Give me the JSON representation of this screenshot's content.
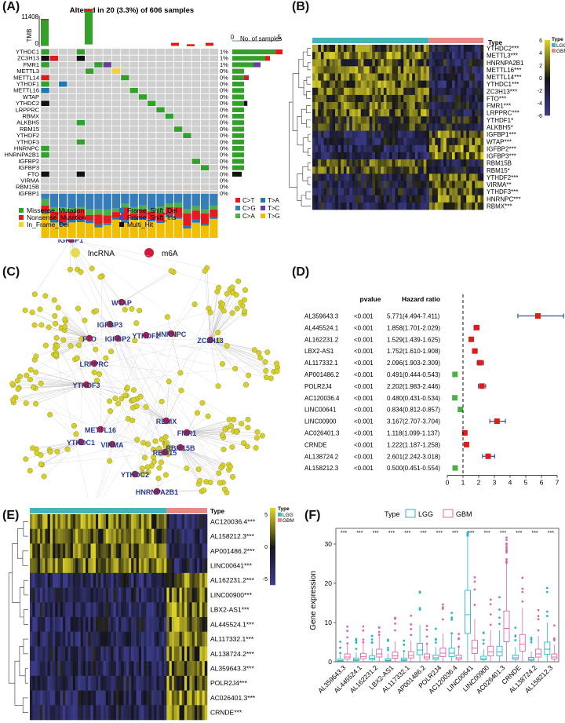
{
  "panels": {
    "A": {
      "label": "(A)"
    },
    "B": {
      "label": "(B)"
    },
    "C": {
      "label": "(C)"
    },
    "D": {
      "label": "(D)"
    },
    "E": {
      "label": "(E)"
    },
    "F": {
      "label": "(F)"
    }
  },
  "panelA": {
    "title": "Altered in 20 (3.3%) of 606 samples",
    "tmb_label": "TMB",
    "tmb_max": "11408",
    "tmb_min": "0",
    "nsamples_label": "No. of samples",
    "nsamples_axis": [
      "0",
      "5"
    ],
    "genes": [
      "YTHDC1",
      "ZC3H13",
      "FMR1",
      "METTL3",
      "METTL14",
      "YTHDF1",
      "METTL16",
      "WTAP",
      "YTHDC2",
      "LRPPRC",
      "RBMX",
      "ALKBH5",
      "RBM15",
      "YTHDF2",
      "YTHDF3",
      "HNRNPC",
      "HNRNPA2B1",
      "IGFBP2",
      "IGFBP3",
      "FTO",
      "VIRMA",
      "RBM15B",
      "IGFBP1"
    ],
    "pcts": [
      "1%",
      "1%",
      "1%",
      "0%",
      "0%",
      "0%",
      "0%",
      "0%",
      "0%",
      "0%",
      "0%",
      "0%",
      "0%",
      "0%",
      "0%",
      "0%",
      "0%",
      "0%",
      "0%",
      "0%",
      "0%",
      "0%",
      "0%"
    ],
    "snv_legend": [
      "C>T",
      "C>G",
      "C>A",
      "T>A",
      "T>C",
      "T>G"
    ],
    "snv_colors": [
      "#e41a1c",
      "#377eb8",
      "#4daf4a",
      "#1f78b4",
      "#6a3d9a",
      "#f0c000"
    ],
    "mut_legend": [
      "Missense_Mutation",
      "Nonsense_Mutation",
      "In_Frame_Del",
      "Frame_Shift_Del",
      "Frame_Shift_Ins",
      "Multi_Hit"
    ],
    "mut_colors": [
      "#33a02c",
      "#e31a1c",
      "#f5d033",
      "#1f78b4",
      "#6a3d9a",
      "#111111"
    ]
  },
  "panelB": {
    "type_label": "Type",
    "legend_title": "Type",
    "legend_items": [
      "LGG",
      "GBM"
    ],
    "colorbar_ticks": [
      "6",
      "4",
      "2",
      "0",
      "-2",
      "-4",
      "-6"
    ],
    "genes": [
      "YTHDC2***",
      "METTL3***",
      "HNRNPA2B1",
      "METTL16***",
      "METTL14***",
      "YTHDC1***",
      "ZC3H13***",
      "FTO***",
      "FMR1***",
      "LRPPRC***",
      "YTHDF1*",
      "ALKBH5*",
      "IGFBP1***",
      "WTAP***",
      "IGFBP2***",
      "IGFBP3***",
      "RBM15B",
      "RBM15*",
      "YTHDF2***",
      "VIRMA**",
      "YTHDF3***",
      "HNRNPC***",
      "RBMX***"
    ]
  },
  "panelC": {
    "legend": [
      "lncRNA",
      "m6A"
    ],
    "colors": {
      "lncrna": "#c8c81e",
      "m6a": "#d11a3a"
    },
    "nodes": [
      "IGFBP1",
      "WTAP",
      "IGFBP3",
      "FTO",
      "IGFBP2",
      "YTHDF2",
      "HNRNPC",
      "ZC3H13",
      "LRPPRC",
      "YTHDF3",
      "RBMX",
      "FMR1",
      "METTL16",
      "YTHDC1",
      "VIRMA",
      "RBM15B",
      "RBM15",
      "YTHDC2",
      "HNRNPA2B1",
      "METTL3"
    ]
  },
  "chart_data": {
    "type": "forest",
    "title": "",
    "headers": {
      "pvalue": "pvalue",
      "hr": "Hazard ratio"
    },
    "genes": [
      "AL359643.3",
      "AL445524.1",
      "AL162231.2",
      "LBX2-AS1",
      "AL117332.1",
      "AP001486.2",
      "POLR2J4",
      "AC120036.4",
      "LINC00641",
      "LINC00900",
      "AC026401.3",
      "CRNDE",
      "AL138724.2",
      "AL158212.3"
    ],
    "pvalues": [
      "<0.001",
      "<0.001",
      "<0.001",
      "<0.001",
      "<0.001",
      "<0.001",
      "<0.001",
      "<0.001",
      "<0.001",
      "<0.001",
      "<0.001",
      "<0.001",
      "<0.001",
      "<0.001"
    ],
    "hr_text": [
      "5.771(4.494-7.411)",
      "1.858(1.701-2.029)",
      "1.529(1.439-1.625)",
      "1.752(1.610-1.908)",
      "2.096(1.903-2.309)",
      "0.491(0.444-0.543)",
      "2.202(1.983-2.446)",
      "0.480(0.431-0.534)",
      "0.834(0.812-0.857)",
      "3.167(2.707-3.704)",
      "1.118(1.099-1.137)",
      "1.222(1.187-1.258)",
      "2.601(2.242-3.018)",
      "0.500(0.451-0.554)"
    ],
    "hr": [
      5.771,
      1.858,
      1.529,
      1.752,
      2.096,
      0.491,
      2.202,
      0.48,
      0.834,
      3.167,
      1.118,
      1.222,
      2.601,
      0.5
    ],
    "lower": [
      4.494,
      1.701,
      1.439,
      1.61,
      1.903,
      0.444,
      1.983,
      0.431,
      0.812,
      2.707,
      1.099,
      1.187,
      2.242,
      0.451
    ],
    "upper": [
      7.411,
      2.029,
      1.625,
      1.908,
      2.309,
      0.543,
      2.446,
      0.534,
      0.857,
      3.704,
      1.137,
      1.258,
      3.018,
      0.554
    ],
    "xticks": [
      0,
      1,
      2,
      3,
      4,
      5,
      6,
      7
    ],
    "xlim": [
      0,
      7
    ],
    "reference": 1,
    "risk_color": "#e31a1c",
    "protective_color": "#4daf4a",
    "ci_color": "#1f3f8f"
  },
  "panelE": {
    "type_label": "Type",
    "legend_title": "Type",
    "legend_items": [
      "LGG",
      "GBM"
    ],
    "colorbar_ticks": [
      "5",
      "0",
      "-5"
    ],
    "genes": [
      "AC120036.4***",
      "AL158212.3***",
      "AP001486.2***",
      "LINC00641***",
      "AL162231.2***",
      "LINC00900***",
      "LBX2-AS1***",
      "AL445524.1***",
      "AL117332.1***",
      "AL138724.2***",
      "AL359643.3***",
      "POLR2J4***",
      "AC026401.3***",
      "CRNDE***"
    ]
  },
  "panelF": {
    "legend_title": "Type",
    "legend_items": [
      "LGG",
      "GBM"
    ],
    "ylabel": "Gene expression",
    "yticks": [
      "0",
      "10",
      "20",
      "30"
    ],
    "sig": "***",
    "genes": [
      "AL359643.3",
      "AL445524.1",
      "AL162231.2",
      "LBX2-AS1",
      "AL117332.1",
      "AP001486.2",
      "POLR2J4",
      "AC120036.4",
      "LINC00641",
      "LINC00900",
      "AC026401.3",
      "CRNDE",
      "AL138724.2",
      "AL158212.3"
    ],
    "lgg_median": [
      0.3,
      0.5,
      0.9,
      0.4,
      0.5,
      3.0,
      1.0,
      2.2,
      12.0,
      0.8,
      2.5,
      1.0,
      0.6,
      3.2
    ],
    "gbm_median": [
      1.2,
      1.3,
      2.0,
      1.5,
      1.6,
      1.2,
      2.2,
      1.0,
      3.5,
      2.5,
      8.5,
      4.5,
      2.0,
      1.2
    ],
    "colors": {
      "lgg": "#29b6c9",
      "gbm": "#d968b0"
    }
  }
}
